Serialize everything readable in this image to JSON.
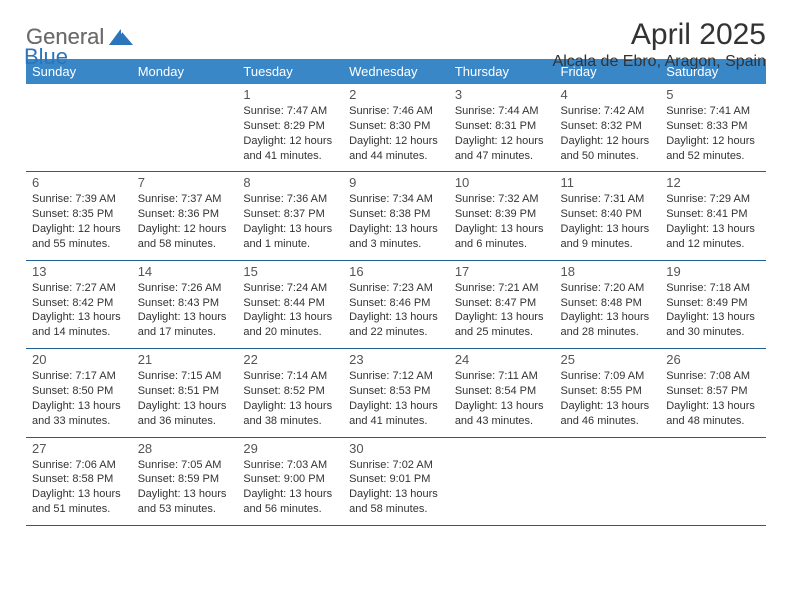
{
  "logo": {
    "text1": "General",
    "text2": "Blue",
    "color1": "#6b6b6b",
    "color2": "#2a75bb"
  },
  "title": "April 2025",
  "location": "Alcala de Ebro, Aragon, Spain",
  "header_bg": "#3a87c8",
  "header_fg": "#ffffff",
  "cell_border": "#1f5f93",
  "weekdays": [
    "Sunday",
    "Monday",
    "Tuesday",
    "Wednesday",
    "Thursday",
    "Friday",
    "Saturday"
  ],
  "weeks": [
    [
      null,
      null,
      {
        "n": "1",
        "sr": "7:47 AM",
        "ss": "8:29 PM",
        "dl": "12 hours and 41 minutes."
      },
      {
        "n": "2",
        "sr": "7:46 AM",
        "ss": "8:30 PM",
        "dl": "12 hours and 44 minutes."
      },
      {
        "n": "3",
        "sr": "7:44 AM",
        "ss": "8:31 PM",
        "dl": "12 hours and 47 minutes."
      },
      {
        "n": "4",
        "sr": "7:42 AM",
        "ss": "8:32 PM",
        "dl": "12 hours and 50 minutes."
      },
      {
        "n": "5",
        "sr": "7:41 AM",
        "ss": "8:33 PM",
        "dl": "12 hours and 52 minutes."
      }
    ],
    [
      {
        "n": "6",
        "sr": "7:39 AM",
        "ss": "8:35 PM",
        "dl": "12 hours and 55 minutes."
      },
      {
        "n": "7",
        "sr": "7:37 AM",
        "ss": "8:36 PM",
        "dl": "12 hours and 58 minutes."
      },
      {
        "n": "8",
        "sr": "7:36 AM",
        "ss": "8:37 PM",
        "dl": "13 hours and 1 minute."
      },
      {
        "n": "9",
        "sr": "7:34 AM",
        "ss": "8:38 PM",
        "dl": "13 hours and 3 minutes."
      },
      {
        "n": "10",
        "sr": "7:32 AM",
        "ss": "8:39 PM",
        "dl": "13 hours and 6 minutes."
      },
      {
        "n": "11",
        "sr": "7:31 AM",
        "ss": "8:40 PM",
        "dl": "13 hours and 9 minutes."
      },
      {
        "n": "12",
        "sr": "7:29 AM",
        "ss": "8:41 PM",
        "dl": "13 hours and 12 minutes."
      }
    ],
    [
      {
        "n": "13",
        "sr": "7:27 AM",
        "ss": "8:42 PM",
        "dl": "13 hours and 14 minutes."
      },
      {
        "n": "14",
        "sr": "7:26 AM",
        "ss": "8:43 PM",
        "dl": "13 hours and 17 minutes."
      },
      {
        "n": "15",
        "sr": "7:24 AM",
        "ss": "8:44 PM",
        "dl": "13 hours and 20 minutes."
      },
      {
        "n": "16",
        "sr": "7:23 AM",
        "ss": "8:46 PM",
        "dl": "13 hours and 22 minutes."
      },
      {
        "n": "17",
        "sr": "7:21 AM",
        "ss": "8:47 PM",
        "dl": "13 hours and 25 minutes."
      },
      {
        "n": "18",
        "sr": "7:20 AM",
        "ss": "8:48 PM",
        "dl": "13 hours and 28 minutes."
      },
      {
        "n": "19",
        "sr": "7:18 AM",
        "ss": "8:49 PM",
        "dl": "13 hours and 30 minutes."
      }
    ],
    [
      {
        "n": "20",
        "sr": "7:17 AM",
        "ss": "8:50 PM",
        "dl": "13 hours and 33 minutes."
      },
      {
        "n": "21",
        "sr": "7:15 AM",
        "ss": "8:51 PM",
        "dl": "13 hours and 36 minutes."
      },
      {
        "n": "22",
        "sr": "7:14 AM",
        "ss": "8:52 PM",
        "dl": "13 hours and 38 minutes."
      },
      {
        "n": "23",
        "sr": "7:12 AM",
        "ss": "8:53 PM",
        "dl": "13 hours and 41 minutes."
      },
      {
        "n": "24",
        "sr": "7:11 AM",
        "ss": "8:54 PM",
        "dl": "13 hours and 43 minutes."
      },
      {
        "n": "25",
        "sr": "7:09 AM",
        "ss": "8:55 PM",
        "dl": "13 hours and 46 minutes."
      },
      {
        "n": "26",
        "sr": "7:08 AM",
        "ss": "8:57 PM",
        "dl": "13 hours and 48 minutes."
      }
    ],
    [
      {
        "n": "27",
        "sr": "7:06 AM",
        "ss": "8:58 PM",
        "dl": "13 hours and 51 minutes."
      },
      {
        "n": "28",
        "sr": "7:05 AM",
        "ss": "8:59 PM",
        "dl": "13 hours and 53 minutes."
      },
      {
        "n": "29",
        "sr": "7:03 AM",
        "ss": "9:00 PM",
        "dl": "13 hours and 56 minutes."
      },
      {
        "n": "30",
        "sr": "7:02 AM",
        "ss": "9:01 PM",
        "dl": "13 hours and 58 minutes."
      },
      null,
      null,
      null
    ]
  ],
  "labels": {
    "sunrise": "Sunrise: ",
    "sunset": "Sunset: ",
    "daylight": "Daylight: "
  }
}
